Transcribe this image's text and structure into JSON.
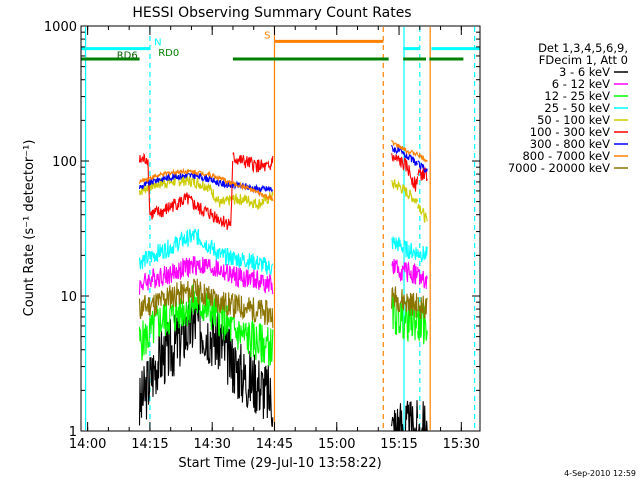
{
  "chart_data": {
    "type": "line",
    "title": "HESSI Observing Summary Count Rates",
    "xlabel": "Start Time (29-Jul-10 13:58:22)",
    "ylabel": "Count Rate (s⁻¹ detector⁻¹)",
    "x_unit": "minutes after 14:00",
    "xlim": [
      -1.6,
      94.5
    ],
    "ylim": [
      1,
      1000
    ],
    "yscale": "log",
    "x_tick_labels": [
      "14:00",
      "14:15",
      "14:30",
      "14:45",
      "15:00",
      "15:15",
      "15:30"
    ],
    "x_tick_values": [
      0,
      15,
      30,
      45,
      60,
      75,
      90
    ],
    "y_tick_labels": [
      "1",
      "10",
      "100",
      "1000"
    ],
    "y_tick_values": [
      1,
      10,
      100,
      1000
    ],
    "legend_header": [
      "Det 1,3,4,5,6,9,",
      "FDecim 1, Att 0"
    ],
    "legend_entries": [
      {
        "label": "3 - 6 keV",
        "color": "#000000"
      },
      {
        "label": "6 - 12 keV",
        "color": "#ff00ff"
      },
      {
        "label": "12 - 25 keV",
        "color": "#00ff00"
      },
      {
        "label": "25 - 50 keV",
        "color": "#00ffff"
      },
      {
        "label": "50 - 100 keV",
        "color": "#cccc00"
      },
      {
        "label": "100 - 300 keV",
        "color": "#ff0000"
      },
      {
        "label": "300 - 800 keV",
        "color": "#0000ff"
      },
      {
        "label": "800 - 7000 keV",
        "color": "#ff8000"
      },
      {
        "label": "7000 - 20000 keV",
        "color": "#8b7500"
      }
    ],
    "segments": [
      [
        12.5,
        35
      ],
      [
        35,
        44.6
      ],
      [
        73.2,
        79.5
      ],
      [
        79.5,
        81.8
      ]
    ],
    "series": [
      {
        "name": "3 - 6 keV",
        "color": "#000000",
        "points": [
          [
            12.5,
            1.5
          ],
          [
            14.5,
            2.2
          ],
          [
            17,
            3.5
          ],
          [
            20,
            4.0
          ],
          [
            23,
            5.2
          ],
          [
            26,
            6.5
          ],
          [
            29,
            5.5
          ],
          [
            32,
            4.5
          ],
          [
            35,
            3.2
          ],
          [
            38,
            2.5
          ],
          [
            41,
            2.3
          ],
          [
            44.6,
            1.7
          ],
          [
            73.2,
            1.0
          ],
          [
            75,
            1.1
          ],
          [
            77,
            1.0
          ],
          [
            79.5,
            1.0
          ],
          [
            81.8,
            1.0
          ]
        ]
      },
      {
        "name": "6 - 12 keV",
        "color": "#ff00ff",
        "points": [
          [
            12.5,
            12
          ],
          [
            14.5,
            13
          ],
          [
            17,
            14
          ],
          [
            20,
            14.5
          ],
          [
            23,
            16
          ],
          [
            26,
            17
          ],
          [
            29,
            16.5
          ],
          [
            32,
            15.5
          ],
          [
            35,
            14
          ],
          [
            38,
            13.5
          ],
          [
            41,
            13
          ],
          [
            44.6,
            12
          ],
          [
            73.2,
            16
          ],
          [
            75,
            15.5
          ],
          [
            77,
            15
          ],
          [
            79.5,
            14.5
          ],
          [
            81.8,
            12
          ]
        ]
      },
      {
        "name": "12 - 25 keV",
        "color": "#00ff00",
        "points": [
          [
            12.5,
            4.5
          ],
          [
            14.5,
            5.0
          ],
          [
            17,
            6.5
          ],
          [
            20,
            7.0
          ],
          [
            23,
            8.0
          ],
          [
            26,
            9.0
          ],
          [
            29,
            8.0
          ],
          [
            32,
            7.0
          ],
          [
            35,
            5.5
          ],
          [
            38,
            5.0
          ],
          [
            41,
            4.5
          ],
          [
            44.6,
            4.2
          ],
          [
            73.2,
            7.5
          ],
          [
            75,
            7.0
          ],
          [
            77,
            6.5
          ],
          [
            79.5,
            6.5
          ],
          [
            81.8,
            6.0
          ]
        ]
      },
      {
        "name": "25 - 50 keV",
        "color": "#00ffff",
        "points": [
          [
            12.5,
            18
          ],
          [
            14.5,
            19
          ],
          [
            17,
            21
          ],
          [
            20,
            23
          ],
          [
            23,
            26
          ],
          [
            26,
            28
          ],
          [
            29,
            24
          ],
          [
            32,
            20
          ],
          [
            35,
            19
          ],
          [
            38,
            18.5
          ],
          [
            41,
            17.5
          ],
          [
            44.6,
            16
          ],
          [
            73.2,
            25
          ],
          [
            75,
            24
          ],
          [
            77,
            22
          ],
          [
            79.5,
            21
          ],
          [
            81.8,
            20
          ]
        ]
      },
      {
        "name": "50 - 100 keV",
        "color": "#cccc00",
        "points": [
          [
            12.5,
            60
          ],
          [
            14.5,
            64
          ],
          [
            17,
            68
          ],
          [
            20,
            70
          ],
          [
            23,
            72
          ],
          [
            26,
            70
          ],
          [
            29,
            65
          ],
          [
            32,
            48
          ],
          [
            35,
            52
          ],
          [
            38,
            52
          ],
          [
            41,
            48
          ],
          [
            44.6,
            55
          ],
          [
            73.2,
            68
          ],
          [
            75,
            65
          ],
          [
            77,
            58
          ],
          [
            79.5,
            50
          ],
          [
            81.8,
            35
          ]
        ]
      },
      {
        "name": "100 - 300 keV",
        "color": "#ff0000",
        "points": [
          [
            12.5,
            100
          ],
          [
            14.5,
            105
          ],
          [
            15,
            40
          ],
          [
            18,
            42
          ],
          [
            21,
            48
          ],
          [
            24,
            52
          ],
          [
            27,
            44
          ],
          [
            30,
            40
          ],
          [
            32.5,
            36
          ],
          [
            34.5,
            34
          ],
          [
            35,
            105
          ],
          [
            38,
            98
          ],
          [
            41,
            92
          ],
          [
            44,
            88
          ],
          [
            44.6,
            110
          ],
          [
            73.2,
            105
          ],
          [
            75,
            100
          ],
          [
            77,
            90
          ],
          [
            79,
            65
          ],
          [
            79.5,
            80
          ],
          [
            81.8,
            80
          ]
        ]
      },
      {
        "name": "300 - 800 keV",
        "color": "#0000ff",
        "points": [
          [
            12.5,
            64
          ],
          [
            14.5,
            68
          ],
          [
            17,
            73
          ],
          [
            20,
            76
          ],
          [
            23,
            78
          ],
          [
            26,
            78
          ],
          [
            29,
            74
          ],
          [
            32,
            68
          ],
          [
            35,
            66
          ],
          [
            38,
            65
          ],
          [
            41,
            62
          ],
          [
            44.6,
            62
          ],
          [
            73.2,
            125
          ],
          [
            75,
            118
          ],
          [
            77,
            108
          ],
          [
            79.5,
            95
          ],
          [
            81.8,
            85
          ]
        ]
      },
      {
        "name": "800 - 7000 keV",
        "color": "#ff8000",
        "points": [
          [
            12.5,
            70
          ],
          [
            14.5,
            74
          ],
          [
            17,
            78
          ],
          [
            20,
            82
          ],
          [
            23,
            84
          ],
          [
            26,
            83
          ],
          [
            29,
            80
          ],
          [
            32,
            74
          ],
          [
            35,
            68
          ],
          [
            38,
            64
          ],
          [
            41,
            58
          ],
          [
            44.6,
            52
          ],
          [
            73.2,
            138
          ],
          [
            75,
            128
          ],
          [
            77,
            118
          ],
          [
            79.5,
            112
          ],
          [
            81.8,
            100
          ]
        ]
      },
      {
        "name": "7000 - 20000 keV",
        "color": "#8b7500",
        "points": [
          [
            12.5,
            8.0
          ],
          [
            14.5,
            8.5
          ],
          [
            17,
            9.0
          ],
          [
            20,
            10.0
          ],
          [
            23,
            10.5
          ],
          [
            26,
            11.0
          ],
          [
            29,
            10.0
          ],
          [
            32,
            9.0
          ],
          [
            35,
            8.5
          ],
          [
            38,
            8.2
          ],
          [
            41,
            7.8
          ],
          [
            44.6,
            7.2
          ],
          [
            73.2,
            10.0
          ],
          [
            75,
            9.5
          ],
          [
            77,
            9.0
          ],
          [
            79.5,
            8.5
          ],
          [
            81.8,
            8.0
          ]
        ]
      }
    ],
    "flag_bars": [
      {
        "label": "N",
        "color": "#00ffff",
        "y": 680,
        "ranges": [
          [
            -1.6,
            15
          ],
          [
            76,
            80
          ],
          [
            82.8,
            94.5
          ]
        ],
        "label_x": 16
      },
      {
        "label": "RD0",
        "color": "#008000",
        "y": 570,
        "ranges": [
          [
            -1.6,
            12.5
          ],
          [
            35,
            72.5
          ],
          [
            76,
            81.5
          ],
          [
            82.3,
            90.5
          ]
        ],
        "label_x": 17
      },
      {
        "label": "RD6",
        "color": "#006400",
        "y": 545,
        "ranges": [],
        "label_x": 7
      },
      {
        "label": "S",
        "color": "#ff8000",
        "y": 770,
        "ranges": [
          [
            45,
            71.2
          ]
        ],
        "label_x": 42.5
      }
    ],
    "vertical_markers": [
      {
        "x": -0.5,
        "color": "#00ffff",
        "style": "solid"
      },
      {
        "x": 15,
        "color": "#00ffff",
        "style": "dashed"
      },
      {
        "x": 45,
        "color": "#ff8000",
        "style": "solid"
      },
      {
        "x": 71.2,
        "color": "#ff8000",
        "style": "dashed"
      },
      {
        "x": 76.2,
        "color": "#00ffff",
        "style": "solid"
      },
      {
        "x": 80.0,
        "color": "#00ffff",
        "style": "dashed"
      },
      {
        "x": 82.5,
        "color": "#ff8000",
        "style": "solid"
      },
      {
        "x": 93.2,
        "color": "#00ffff",
        "style": "dashed"
      }
    ],
    "footer": "4-Sep-2010 12:59"
  }
}
